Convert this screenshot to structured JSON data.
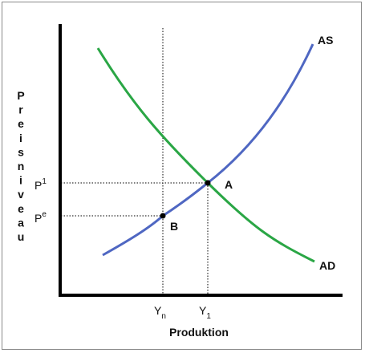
{
  "diagram": {
    "y_axis_title": "Preisniveau",
    "x_axis_title": "Produktion",
    "curves": [
      {
        "name": "AS",
        "color": "#4f67c2"
      },
      {
        "name": "AD",
        "color": "#2aa645"
      }
    ],
    "points": [
      {
        "label": "A"
      },
      {
        "label": "B"
      }
    ],
    "y_ticks": [
      {
        "base": "P",
        "sup": "1"
      },
      {
        "base": "P",
        "sup": "e"
      }
    ],
    "x_ticks": [
      {
        "base": "Y",
        "sub": "n"
      },
      {
        "base": "Y",
        "sub": "1"
      }
    ]
  }
}
